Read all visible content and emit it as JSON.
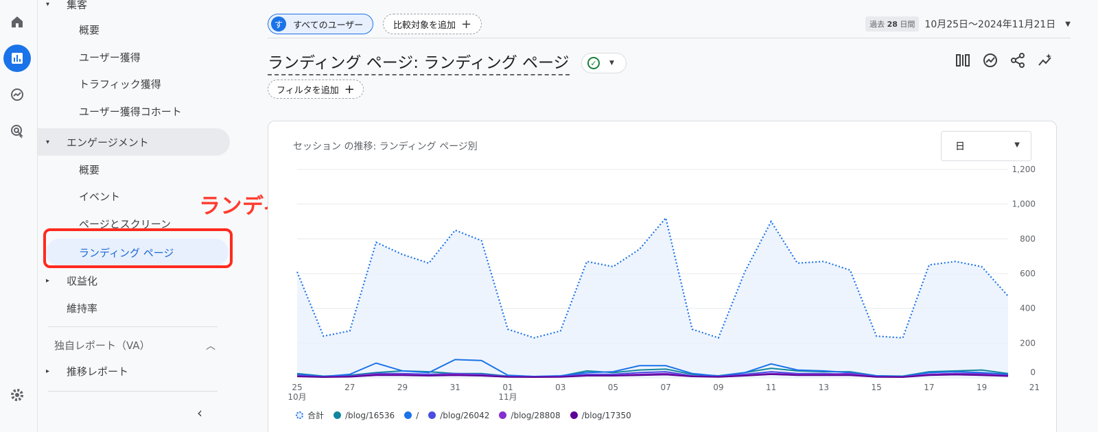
{
  "rail": {
    "icons": [
      "home-icon",
      "reports-icon",
      "explore-icon",
      "advertising-icon",
      "settings-icon"
    ],
    "accent": "#1a73e8"
  },
  "nav": {
    "acquisition_label": "集客",
    "acq_items": [
      "概要",
      "ユーザー獲得",
      "トラフィック獲得",
      "ユーザー獲得コホート"
    ],
    "engagement_label": "エンゲージメント",
    "eng_items": [
      "概要",
      "イベント",
      "ページとスクリーン",
      "ランディング ページ"
    ],
    "monetization_label": "収益化",
    "retention_label": "維持率",
    "custom_section_label": "独自レポート（VA）",
    "trend_report_label": "推移レポート"
  },
  "annotation": {
    "text": "ランディングページを選択",
    "color": "#ff2a1f"
  },
  "topbar": {
    "user_badge": "す",
    "user_chip_label": "すべてのユーザー",
    "compare_label": "比較対象を追加",
    "date_badge_prefix": "過去",
    "date_badge_days": "28",
    "date_badge_suffix": "日間",
    "date_range": "10月25日～2024年11月21日"
  },
  "page": {
    "title": "ランディング ページ: ランディング ページ",
    "filter_label": "フィルタを追加",
    "tool_icons": [
      "compare-view-icon",
      "insights-icon",
      "share-icon",
      "sparkle-insights-icon"
    ]
  },
  "card": {
    "title": "セッション の推移: ランディング ページ別",
    "granularity": "日"
  },
  "chart_data": {
    "type": "line",
    "title": "セッション の推移: ランディング ページ別",
    "y_ticks": [
      "0",
      "200",
      "400",
      "600",
      "800",
      "1,000",
      "1,200"
    ],
    "ylim": [
      0,
      1200
    ],
    "x_tick_labels": [
      "25",
      "27",
      "29",
      "31",
      "01",
      "03",
      "05",
      "07",
      "09",
      "11",
      "13",
      "15",
      "17",
      "19",
      "21"
    ],
    "x_month_labels": [
      {
        "at": "25",
        "label": "10月"
      },
      {
        "at": "01",
        "label": "11月"
      }
    ],
    "x": [
      "10/25",
      "10/26",
      "10/27",
      "10/28",
      "10/29",
      "10/30",
      "10/31",
      "11/01",
      "11/02",
      "11/03",
      "11/04",
      "11/05",
      "11/06",
      "11/07",
      "11/08",
      "11/09",
      "11/10",
      "11/11",
      "11/12",
      "11/13",
      "11/14",
      "11/15",
      "11/16",
      "11/17",
      "11/18",
      "11/19",
      "11/20",
      "11/21"
    ],
    "series": [
      {
        "name": "合計",
        "color": "#1a73e8",
        "style": "dotted",
        "values": [
          610,
          240,
          270,
          780,
          710,
          660,
          850,
          790,
          280,
          230,
          270,
          670,
          640,
          740,
          920,
          280,
          230,
          610,
          900,
          660,
          670,
          620,
          240,
          230,
          650,
          670,
          640,
          470
        ]
      },
      {
        "name": "/blog/16536",
        "color": "#12869e",
        "values": [
          25,
          10,
          15,
          30,
          40,
          35,
          25,
          25,
          10,
          8,
          10,
          40,
          30,
          45,
          50,
          20,
          12,
          30,
          55,
          40,
          35,
          35,
          12,
          10,
          35,
          40,
          45,
          25
        ]
      },
      {
        "name": "/",
        "color": "#1a73e8",
        "values": [
          20,
          8,
          20,
          85,
          40,
          30,
          105,
          100,
          15,
          8,
          12,
          30,
          35,
          70,
          70,
          25,
          10,
          30,
          80,
          45,
          40,
          30,
          12,
          8,
          30,
          35,
          30,
          20
        ]
      },
      {
        "name": "/blog/26042",
        "color": "#4a4de0",
        "values": [
          15,
          5,
          10,
          25,
          25,
          20,
          25,
          20,
          8,
          5,
          8,
          20,
          20,
          30,
          35,
          12,
          8,
          20,
          35,
          25,
          25,
          20,
          8,
          6,
          20,
          25,
          25,
          15
        ]
      },
      {
        "name": "/blog/28808",
        "color": "#8430ce",
        "values": [
          10,
          5,
          8,
          20,
          20,
          15,
          20,
          15,
          6,
          5,
          6,
          15,
          15,
          20,
          25,
          10,
          6,
          15,
          25,
          20,
          20,
          25,
          6,
          5,
          20,
          25,
          20,
          12
        ]
      },
      {
        "name": "/blog/17350",
        "color": "#5c0096",
        "values": [
          8,
          4,
          6,
          15,
          15,
          12,
          15,
          12,
          5,
          4,
          5,
          12,
          12,
          15,
          18,
          8,
          5,
          12,
          20,
          15,
          15,
          15,
          5,
          4,
          15,
          18,
          15,
          10
        ]
      }
    ],
    "grid": true,
    "legend_position": "bottom-left"
  }
}
